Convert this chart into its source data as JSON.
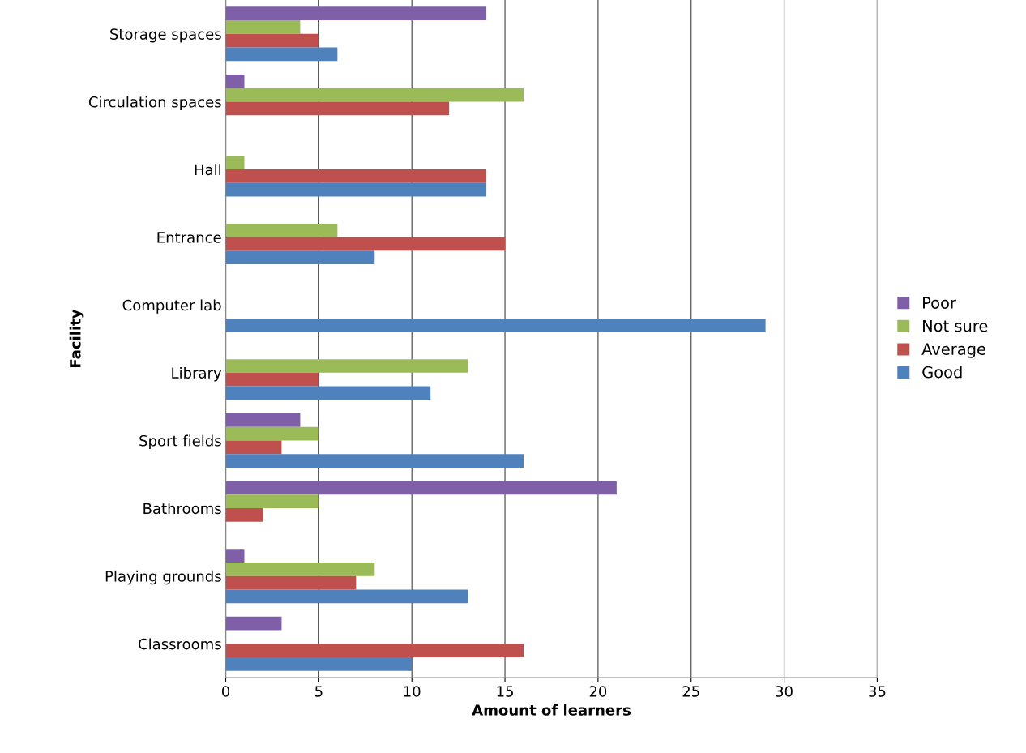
{
  "chart_data": {
    "type": "bar",
    "orientation": "horizontal",
    "xlabel": "Amount of learners",
    "ylabel": "Facility",
    "categories": [
      "Storage spaces",
      "Circulation spaces",
      "Hall",
      "Entrance",
      "Computer lab",
      "Library",
      "Sport fields",
      "Bathrooms",
      "Playing grounds",
      "Classrooms"
    ],
    "series": [
      {
        "name": "Poor",
        "color": "#7f60a8",
        "values": [
          14,
          1,
          null,
          null,
          null,
          null,
          4,
          21,
          1,
          3
        ]
      },
      {
        "name": "Not sure",
        "color": "#9bbb59",
        "values": [
          4,
          16,
          1,
          6,
          null,
          13,
          5,
          5,
          8,
          null
        ]
      },
      {
        "name": "Average",
        "color": "#c0504d",
        "values": [
          5,
          12,
          14,
          15,
          null,
          5,
          3,
          2,
          7,
          16
        ]
      },
      {
        "name": "Good",
        "color": "#4f81bd",
        "values": [
          6,
          null,
          14,
          8,
          29,
          11,
          16,
          null,
          13,
          10
        ]
      }
    ],
    "xlim": [
      0,
      35
    ],
    "xticks": [
      0,
      5,
      10,
      15,
      20,
      25,
      30,
      35
    ],
    "grid": "x",
    "legend": "right"
  }
}
